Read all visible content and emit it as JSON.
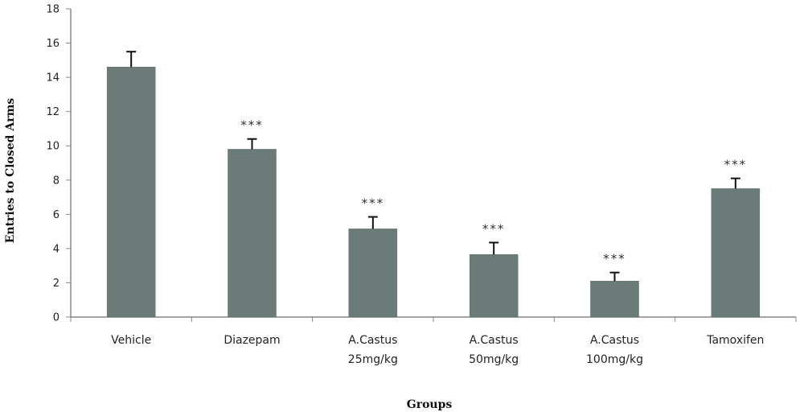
{
  "chart_data": {
    "type": "bar",
    "title": "",
    "xlabel": "Groups",
    "ylabel": "Entries to Closed Arms",
    "ylim": [
      0,
      18
    ],
    "yticks": [
      0,
      2,
      4,
      6,
      8,
      10,
      12,
      14,
      16,
      18
    ],
    "grid": false,
    "categories": [
      [
        "Vehicle"
      ],
      [
        "Diazepam"
      ],
      [
        "A.Castus",
        "25mg/kg"
      ],
      [
        "A.Castus",
        "50mg/kg"
      ],
      [
        "A.Castus",
        "100mg/kg"
      ],
      [
        "Tamoxifen"
      ]
    ],
    "values": [
      14.6,
      9.8,
      5.15,
      3.65,
      2.1,
      7.5
    ],
    "error": [
      0.9,
      0.6,
      0.7,
      0.7,
      0.5,
      0.6
    ],
    "significance": [
      "",
      "***",
      "***",
      "***",
      "***",
      "***"
    ],
    "colors": {
      "bar": "#6b7c78",
      "bar_edge": "#5b6a67",
      "axis": "#888888",
      "error_bar": "#111111"
    }
  }
}
